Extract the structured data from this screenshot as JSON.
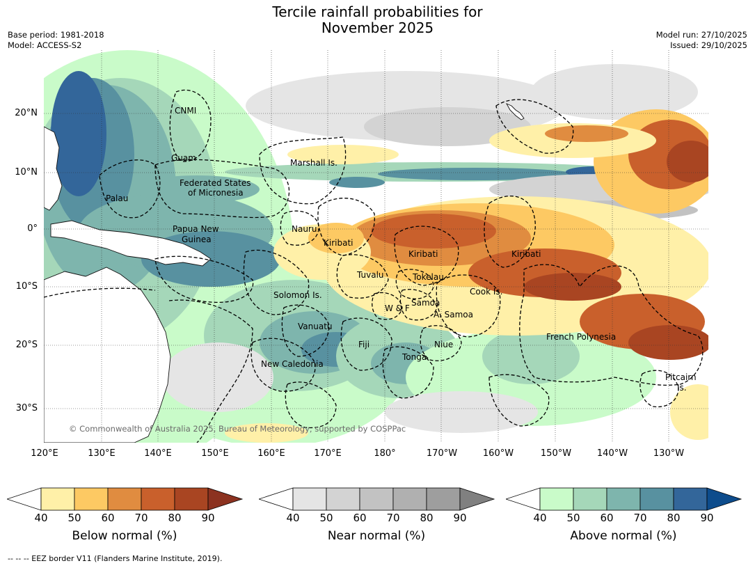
{
  "title_line1": "Tercile rainfall probabilities for",
  "title_line2": "November 2025",
  "base_period": "Base period: 1981-2018",
  "model": "Model: ACCESS-S2",
  "model_run": "Model run: 27/10/2025",
  "issued": "Issued: 29/10/2025",
  "lat_labels": [
    "20°N",
    "10°N",
    "0°",
    "10°S",
    "20°S",
    "30°S"
  ],
  "lon_labels": [
    "120°E",
    "130°E",
    "140°E",
    "150°E",
    "160°E",
    "170°E",
    "180°",
    "170°W",
    "160°W",
    "150°W",
    "140°W",
    "130°W"
  ],
  "credit": "© Commonwealth of Australia 2025, Bureau of Meteorology, supported by COSPPac",
  "place_labels": [
    "CNMI",
    "Guam",
    "Marshall Is.",
    "Federated States",
    "of Micronesia",
    "Palau",
    "Papua New",
    "Guinea",
    "Nauru",
    "Kiribati",
    "Kiribati",
    "Kiribati",
    "Tuvalu",
    "Tokelau",
    "Solomon Is.",
    "Samoa",
    "W & F",
    "A. Samoa",
    "Cook Is.",
    "Vanuatu",
    "Fiji",
    "Niue",
    "Tonga",
    "French Polynesia",
    "New Caledonia",
    "Pitcairn",
    "Is."
  ],
  "colorbars": [
    {
      "title": "Below normal (%)",
      "ticks": [
        "40",
        "50",
        "60",
        "70",
        "80",
        "90"
      ],
      "colors": [
        "#fff0a8",
        "#fdc963",
        "#e08c40",
        "#c9602c",
        "#a94522"
      ],
      "over": "#8c3220"
    },
    {
      "title": "Near normal (%)",
      "ticks": [
        "40",
        "50",
        "60",
        "70",
        "80",
        "90"
      ],
      "colors": [
        "#e5e5e5",
        "#d3d3d3",
        "#c2c2c2",
        "#b0b0b0",
        "#9e9e9e"
      ],
      "over": "#808080"
    },
    {
      "title": "Above normal (%)",
      "ticks": [
        "40",
        "50",
        "60",
        "70",
        "80",
        "90"
      ],
      "colors": [
        "#c9fbc9",
        "#a5d7b9",
        "#7eb5ad",
        "#5891a0",
        "#33669a"
      ],
      "over": "#0d4c8c"
    }
  ],
  "footnote": "--  --  -- EEZ border V11 (Flanders Marine Institute, 2019)."
}
